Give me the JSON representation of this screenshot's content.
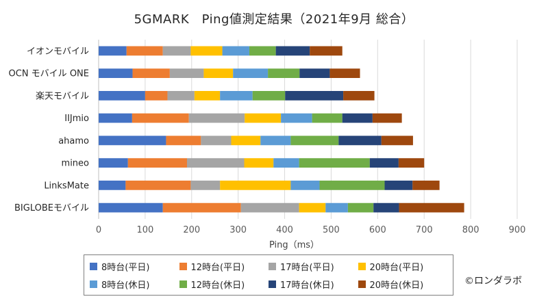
{
  "chart_data": {
    "type": "bar",
    "orientation": "horizontal",
    "stacked": true,
    "title": "5GMARK　Ping値測定結果（2021年9月 総合）",
    "xlabel": "Ping（ms）",
    "ylabel": "",
    "xlim": [
      0,
      900
    ],
    "xticks": [
      0,
      100,
      200,
      300,
      400,
      500,
      600,
      700,
      800,
      900
    ],
    "grid": true,
    "legend_position": "bottom",
    "categories": [
      "イオンモバイル",
      "OCN モバイル ONE",
      "楽天モバイル",
      "IIJmio",
      "ahamo",
      "mineo",
      "LinksMate",
      "BIGLOBEモバイル"
    ],
    "series": [
      {
        "name": "8時台(平日)",
        "color": "#4472C4",
        "values": [
          60,
          73,
          100,
          72,
          145,
          63,
          58,
          138
        ]
      },
      {
        "name": "12時台(平日)",
        "color": "#ED7D31",
        "values": [
          78,
          80,
          48,
          122,
          75,
          127,
          140,
          168
        ]
      },
      {
        "name": "17時台(平日)",
        "color": "#A5A5A5",
        "values": [
          60,
          73,
          58,
          120,
          65,
          123,
          63,
          125
        ]
      },
      {
        "name": "20時台(平日)",
        "color": "#FFC000",
        "values": [
          68,
          63,
          55,
          78,
          63,
          63,
          152,
          57
        ]
      },
      {
        "name": "8時台(休日)",
        "color": "#5B9BD5",
        "values": [
          58,
          75,
          70,
          67,
          65,
          55,
          62,
          48
        ]
      },
      {
        "name": "12時台(休日)",
        "color": "#70AD47",
        "values": [
          57,
          68,
          70,
          65,
          103,
          152,
          140,
          55
        ]
      },
      {
        "name": "17時台(休日)",
        "color": "#264478",
        "values": [
          73,
          65,
          125,
          65,
          92,
          62,
          60,
          55
        ]
      },
      {
        "name": "20時台(休日)",
        "color": "#9E480E",
        "values": [
          70,
          65,
          67,
          63,
          68,
          55,
          58,
          140
        ]
      }
    ]
  },
  "credit": "©ロンダラボ"
}
